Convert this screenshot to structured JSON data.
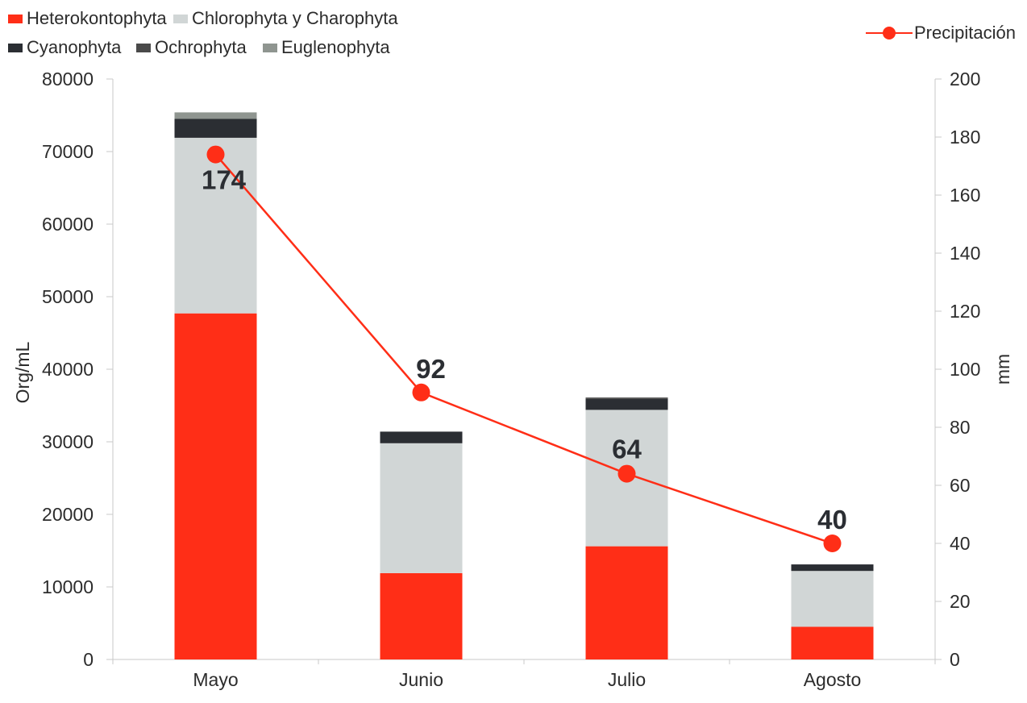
{
  "chart_data": {
    "type": "bar",
    "stacked": true,
    "categories": [
      "Mayo",
      "Junio",
      "Julio",
      "Agosto"
    ],
    "series": [
      {
        "name": "Heterokontophyta",
        "color": "#ff2e17",
        "values": [
          47700,
          11900,
          15600,
          4500
        ]
      },
      {
        "name": "Chlorophyta y Charophyta",
        "color": "#d1d6d6",
        "values": [
          24200,
          17900,
          18800,
          7700
        ]
      },
      {
        "name": "Cyanophyta",
        "color": "#2b2e33",
        "values": [
          2600,
          1600,
          1500,
          900
        ]
      },
      {
        "name": "Ochrophyta",
        "color": "#4a4a4a",
        "values": [
          0,
          0,
          200,
          0
        ]
      },
      {
        "name": "Euglenophyta",
        "color": "#8f9590",
        "values": [
          900,
          0,
          0,
          0
        ]
      }
    ],
    "line": {
      "name": "Precipitación",
      "color": "#ff2e17",
      "axis": "right",
      "values": [
        174,
        92,
        64,
        40
      ],
      "labels": [
        "174",
        "92",
        "64",
        "40"
      ]
    },
    "title": "",
    "xlabel": "",
    "ylabel": "Org/mL",
    "y2label": "mm",
    "ylim": [
      0,
      80000
    ],
    "y2lim": [
      0,
      200
    ],
    "yticks": [
      "0",
      "10000",
      "20000",
      "30000",
      "40000",
      "50000",
      "60000",
      "70000",
      "80000"
    ],
    "y2ticks": [
      "0",
      "20",
      "40",
      "60",
      "80",
      "100",
      "120",
      "140",
      "160",
      "180",
      "200"
    ],
    "grid": false,
    "legend_position": "top"
  }
}
